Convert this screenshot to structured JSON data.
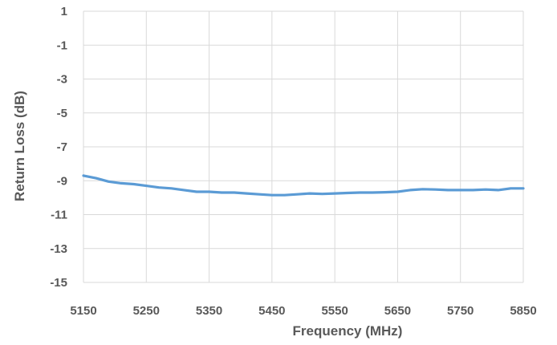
{
  "chart_data": {
    "type": "line",
    "title": "",
    "xlabel": "Frequency (MHz)",
    "ylabel": "Return Loss (dB)",
    "xlim": [
      5150,
      5850
    ],
    "ylim": [
      -15,
      1
    ],
    "x_ticks": [
      5150,
      5250,
      5350,
      5450,
      5550,
      5650,
      5750,
      5850
    ],
    "y_ticks": [
      1,
      -1,
      -3,
      -5,
      -7,
      -9,
      -11,
      -13,
      -15
    ],
    "grid": true,
    "legend": "none",
    "series": [
      {
        "color": "#5b9bd5",
        "x": [
          5150,
          5170,
          5190,
          5210,
          5230,
          5250,
          5270,
          5290,
          5310,
          5330,
          5350,
          5370,
          5390,
          5410,
          5430,
          5450,
          5470,
          5490,
          5510,
          5530,
          5550,
          5570,
          5590,
          5610,
          5630,
          5650,
          5670,
          5690,
          5710,
          5730,
          5750,
          5770,
          5790,
          5810,
          5830,
          5850
        ],
        "y": [
          -8.7,
          -8.85,
          -9.05,
          -9.15,
          -9.2,
          -9.3,
          -9.4,
          -9.45,
          -9.55,
          -9.65,
          -9.65,
          -9.7,
          -9.7,
          -9.75,
          -9.8,
          -9.85,
          -9.85,
          -9.8,
          -9.75,
          -9.78,
          -9.75,
          -9.72,
          -9.7,
          -9.7,
          -9.68,
          -9.65,
          -9.55,
          -9.5,
          -9.52,
          -9.55,
          -9.55,
          -9.55,
          -9.52,
          -9.55,
          -9.45,
          -9.45
        ]
      }
    ]
  }
}
